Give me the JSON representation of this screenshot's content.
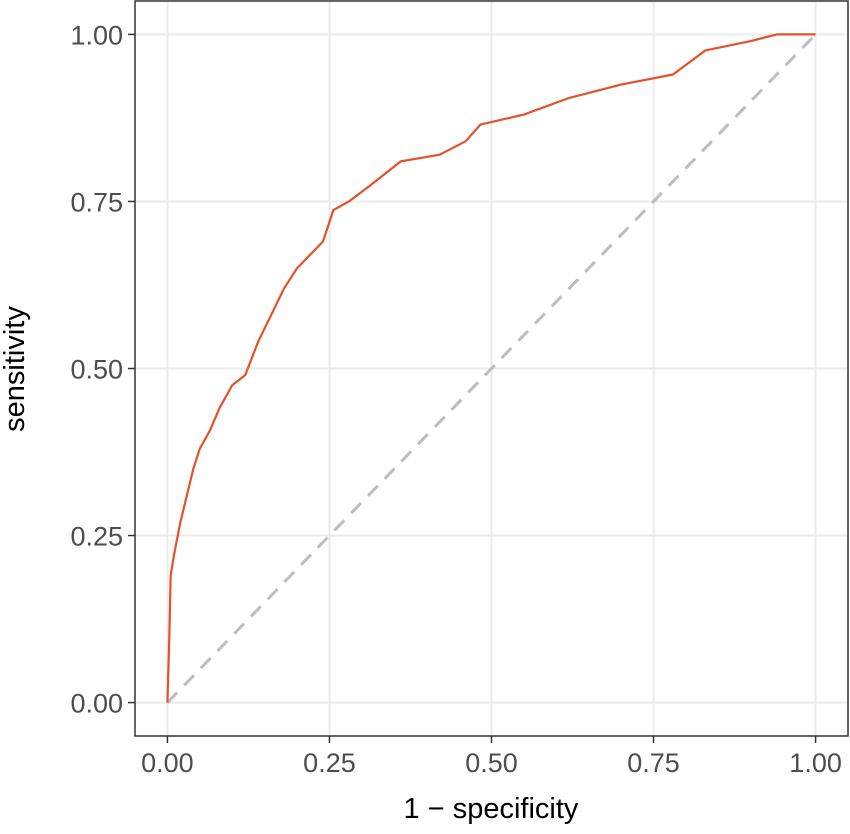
{
  "chart_data": {
    "type": "line",
    "xlabel": "1 − specificity",
    "ylabel": "sensitivity",
    "xlim": [
      -0.05,
      1.05
    ],
    "ylim": [
      -0.05,
      1.05
    ],
    "xticks": [
      {
        "value": 0,
        "label": "0.00"
      },
      {
        "value": 0.25,
        "label": "0.25"
      },
      {
        "value": 0.5,
        "label": "0.50"
      },
      {
        "value": 0.75,
        "label": "0.75"
      },
      {
        "value": 1,
        "label": "1.00"
      }
    ],
    "yticks": [
      {
        "value": 0,
        "label": "0.00"
      },
      {
        "value": 0.25,
        "label": "0.25"
      },
      {
        "value": 0.5,
        "label": "0.50"
      },
      {
        "value": 0.75,
        "label": "0.75"
      },
      {
        "value": 1,
        "label": "1.00"
      }
    ],
    "grid": true,
    "reference_line": {
      "color": "#bdbdbd",
      "dashed": true
    },
    "series": [
      {
        "color": "#e4512b",
        "x": [
          0,
          0.003,
          0.005,
          0.01,
          0.02,
          0.03,
          0.04,
          0.05,
          0.066,
          0.08,
          0.1,
          0.12,
          0.14,
          0.16,
          0.18,
          0.2,
          0.22,
          0.24,
          0.256,
          0.28,
          0.313,
          0.36,
          0.42,
          0.46,
          0.483,
          0.55,
          0.62,
          0.7,
          0.78,
          0.83,
          0.9,
          0.94,
          1
        ],
        "values": [
          0,
          0.1,
          0.19,
          0.22,
          0.27,
          0.31,
          0.35,
          0.38,
          0.408,
          0.44,
          0.475,
          0.49,
          0.54,
          0.58,
          0.62,
          0.65,
          0.67,
          0.69,
          0.737,
          0.75,
          0.774,
          0.81,
          0.82,
          0.84,
          0.865,
          0.88,
          0.905,
          0.925,
          0.94,
          0.976,
          0.99,
          1,
          1
        ]
      }
    ]
  }
}
